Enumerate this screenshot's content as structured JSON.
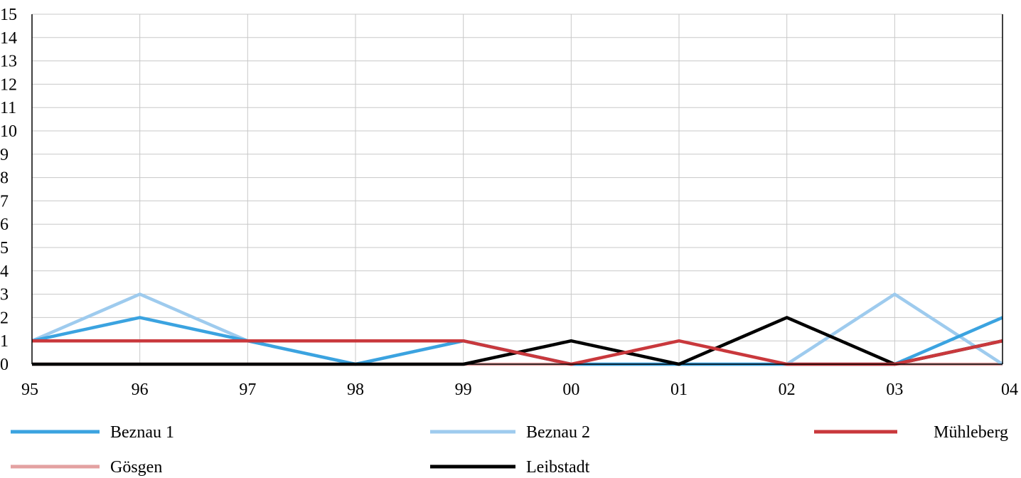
{
  "chart_data": {
    "type": "line",
    "categories": [
      "95",
      "96",
      "97",
      "98",
      "99",
      "00",
      "01",
      "02",
      "03",
      "04"
    ],
    "ylim": [
      0,
      15
    ],
    "yticks": [
      "0",
      "1",
      "2",
      "3",
      "4",
      "5",
      "6",
      "7",
      "8",
      "9",
      "10",
      "11",
      "12",
      "13",
      "14",
      "15"
    ],
    "grid": true,
    "legend_position": "bottom",
    "series": [
      {
        "name": "Gösgen",
        "color": "#e3a1a1",
        "values": [
          0,
          0,
          0,
          0,
          0,
          0,
          0,
          0,
          0,
          0
        ]
      },
      {
        "name": "Beznau 2",
        "color": "#9ecbee",
        "values": [
          1,
          3,
          1,
          0,
          1,
          0,
          0,
          0,
          3,
          0
        ]
      },
      {
        "name": "Beznau 1",
        "color": "#3ba3e0",
        "values": [
          1,
          2,
          1,
          0,
          1,
          0,
          0,
          0,
          0,
          2
        ]
      },
      {
        "name": "Leibstadt",
        "color": "#000000",
        "values": [
          0,
          0,
          0,
          0,
          0,
          1,
          0,
          2,
          0,
          1
        ]
      },
      {
        "name": "Mühleberg",
        "color": "#c9383c",
        "values": [
          1,
          1,
          1,
          1,
          1,
          0,
          1,
          0,
          0,
          1
        ]
      }
    ],
    "legend": [
      {
        "name": "Beznau 1",
        "color": "#3ba3e0"
      },
      {
        "name": "Beznau 2",
        "color": "#9ecbee"
      },
      {
        "name": "Mühleberg",
        "color": "#c9383c"
      },
      {
        "name": "Gösgen",
        "color": "#e3a1a1"
      },
      {
        "name": "Leibstadt",
        "color": "#000000"
      }
    ]
  }
}
